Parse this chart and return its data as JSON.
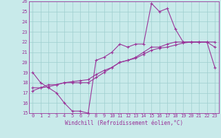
{
  "bg_color": "#c8eaea",
  "grid_color": "#9ecece",
  "line_color": "#993399",
  "spine_color": "#993399",
  "xlabel": "Windchill (Refroidissement éolien,°C)",
  "xlabel_color": "#993399",
  "xlabel_fontsize": 5.5,
  "tick_fontsize": 5.0,
  "tick_color": "#993399",
  "xlim": [
    -0.5,
    23.5
  ],
  "ylim": [
    15,
    26
  ],
  "xticks": [
    0,
    1,
    2,
    3,
    4,
    5,
    6,
    7,
    8,
    9,
    10,
    11,
    12,
    13,
    14,
    15,
    16,
    17,
    18,
    19,
    20,
    21,
    22,
    23
  ],
  "yticks": [
    15,
    16,
    17,
    18,
    19,
    20,
    21,
    22,
    23,
    24,
    25,
    26
  ],
  "line1_x": [
    0,
    1,
    2,
    3,
    4,
    5,
    6,
    7,
    8,
    9,
    10,
    11,
    12,
    13,
    14,
    15,
    16,
    17,
    18,
    19,
    20,
    21,
    22,
    23
  ],
  "line1_y": [
    19,
    18,
    17.5,
    17,
    16,
    15.2,
    15.2,
    15,
    20.2,
    20.5,
    21,
    21.8,
    21.5,
    21.8,
    21.8,
    25.8,
    25,
    25.3,
    23.3,
    22,
    22,
    22,
    22,
    19.5
  ],
  "line2_x": [
    0,
    1,
    2,
    3,
    4,
    5,
    6,
    7,
    8,
    9,
    10,
    11,
    12,
    13,
    14,
    15,
    16,
    17,
    18,
    19,
    20,
    21,
    22,
    23
  ],
  "line2_y": [
    17.5,
    17.5,
    17.8,
    17.8,
    18.0,
    18.0,
    18.0,
    18.0,
    18.5,
    19.0,
    19.5,
    20.0,
    20.2,
    20.5,
    21.0,
    21.5,
    21.5,
    21.8,
    22.0,
    22.0,
    22.0,
    22.0,
    22.0,
    21.5
  ],
  "line3_x": [
    0,
    1,
    2,
    3,
    4,
    5,
    6,
    7,
    8,
    9,
    10,
    11,
    12,
    13,
    14,
    15,
    16,
    17,
    18,
    19,
    20,
    21,
    22,
    23
  ],
  "line3_y": [
    17.2,
    17.5,
    17.6,
    17.8,
    18.0,
    18.1,
    18.2,
    18.3,
    18.8,
    19.2,
    19.5,
    20.0,
    20.2,
    20.4,
    20.8,
    21.2,
    21.4,
    21.5,
    21.7,
    21.9,
    22.0,
    22.0,
    22.0,
    22.0
  ]
}
